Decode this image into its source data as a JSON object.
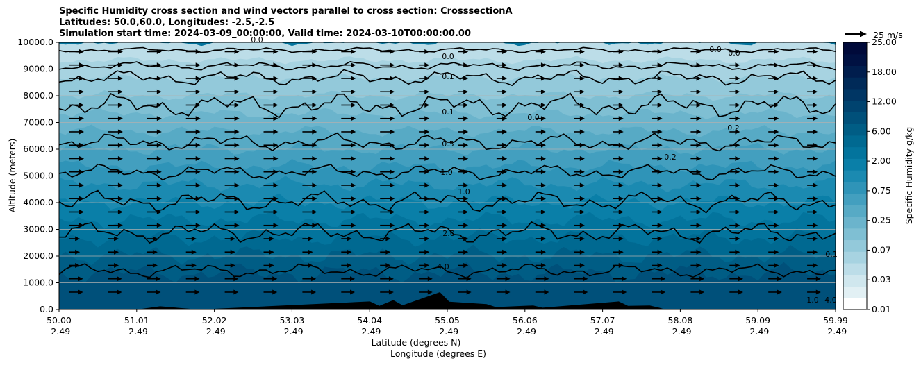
{
  "chart_data": {
    "type": "heatmap",
    "title_lines": [
      "Specific Humidity cross section and wind vectors parallel to cross section: CrosssectionA",
      "Latitudes: 50.0,60.0, Longitudes: -2.5,-2.5",
      "Simulation start time: 2024-03-09_00:00:00, Valid time: 2024-03-10T00:00:00.00"
    ],
    "xlabel_lat": "Latitude (degrees N)",
    "xlabel_lon": "Longitude (degrees E)",
    "ylabel": "Altitude (meters)",
    "ylim": [
      0,
      10000
    ],
    "yticks": [
      "0.0",
      "1000.0",
      "2000.0",
      "3000.0",
      "4000.0",
      "5000.0",
      "6000.0",
      "7000.0",
      "8000.0",
      "9000.0",
      "10000.0"
    ],
    "xticks_lat": [
      "50.00",
      "51.01",
      "52.02",
      "53.03",
      "54.04",
      "55.05",
      "56.06",
      "57.07",
      "58.08",
      "59.09",
      "59.99"
    ],
    "xticks_lon": [
      "-2.49",
      "-2.49",
      "-2.49",
      "-2.49",
      "-2.49",
      "-2.49",
      "-2.49",
      "-2.49",
      "-2.49",
      "-2.49",
      "-2.49"
    ],
    "colorbar": {
      "label": "Specific Humidity g/kg",
      "ticks": [
        "0.01",
        "0.03",
        "0.07",
        "0.25",
        "0.75",
        "2.00",
        "6.00",
        "12.00",
        "18.00",
        "25.00"
      ],
      "colors": [
        "#ffffff",
        "#e2f0f4",
        "#d0e7ee",
        "#bcdde8",
        "#a7d3e1",
        "#93c9da",
        "#7fbfd3",
        "#6bb4cc",
        "#57aac5",
        "#439fbf",
        "#2f94b8",
        "#1b8ab1",
        "#0a7fa8",
        "#03749d",
        "#006991",
        "#005d85",
        "#00507a",
        "#00436f",
        "#003664",
        "#002a58",
        "#001d4d",
        "#001142",
        "#000a3a"
      ]
    },
    "contour_levels": [
      "0.0",
      "0.1",
      "0.5",
      "1.0",
      "2.0",
      "4.0",
      "0.2"
    ],
    "contour_labels": [
      "0.0",
      "0.1",
      "0.5",
      "1.0",
      "2.0",
      "4.0",
      "0.1",
      "1.0",
      "0.0",
      "0.0",
      "0.0",
      "0.2",
      "0.2",
      "0.1",
      "1.0",
      "4.0",
      "0.0"
    ],
    "quiver_key": "25 m/s",
    "terrain": [
      [
        54.0,
        300
      ],
      [
        54.3,
        350
      ],
      [
        54.9,
        650
      ],
      [
        55.5,
        200
      ],
      [
        56.1,
        150
      ],
      [
        57.2,
        300
      ],
      [
        57.6,
        150
      ]
    ],
    "humidity_profile": [
      {
        "altitude": 500,
        "value": 6.0
      },
      {
        "altitude": 1500,
        "value": 4.0
      },
      {
        "altitude": 2500,
        "value": 2.0
      },
      {
        "altitude": 3500,
        "value": 1.5
      },
      {
        "altitude": 4500,
        "value": 1.0
      },
      {
        "altitude": 5500,
        "value": 0.7
      },
      {
        "altitude": 6500,
        "value": 0.4
      },
      {
        "altitude": 7500,
        "value": 0.2
      },
      {
        "altitude": 8500,
        "value": 0.1
      },
      {
        "altitude": 9500,
        "value": 0.05
      }
    ]
  }
}
